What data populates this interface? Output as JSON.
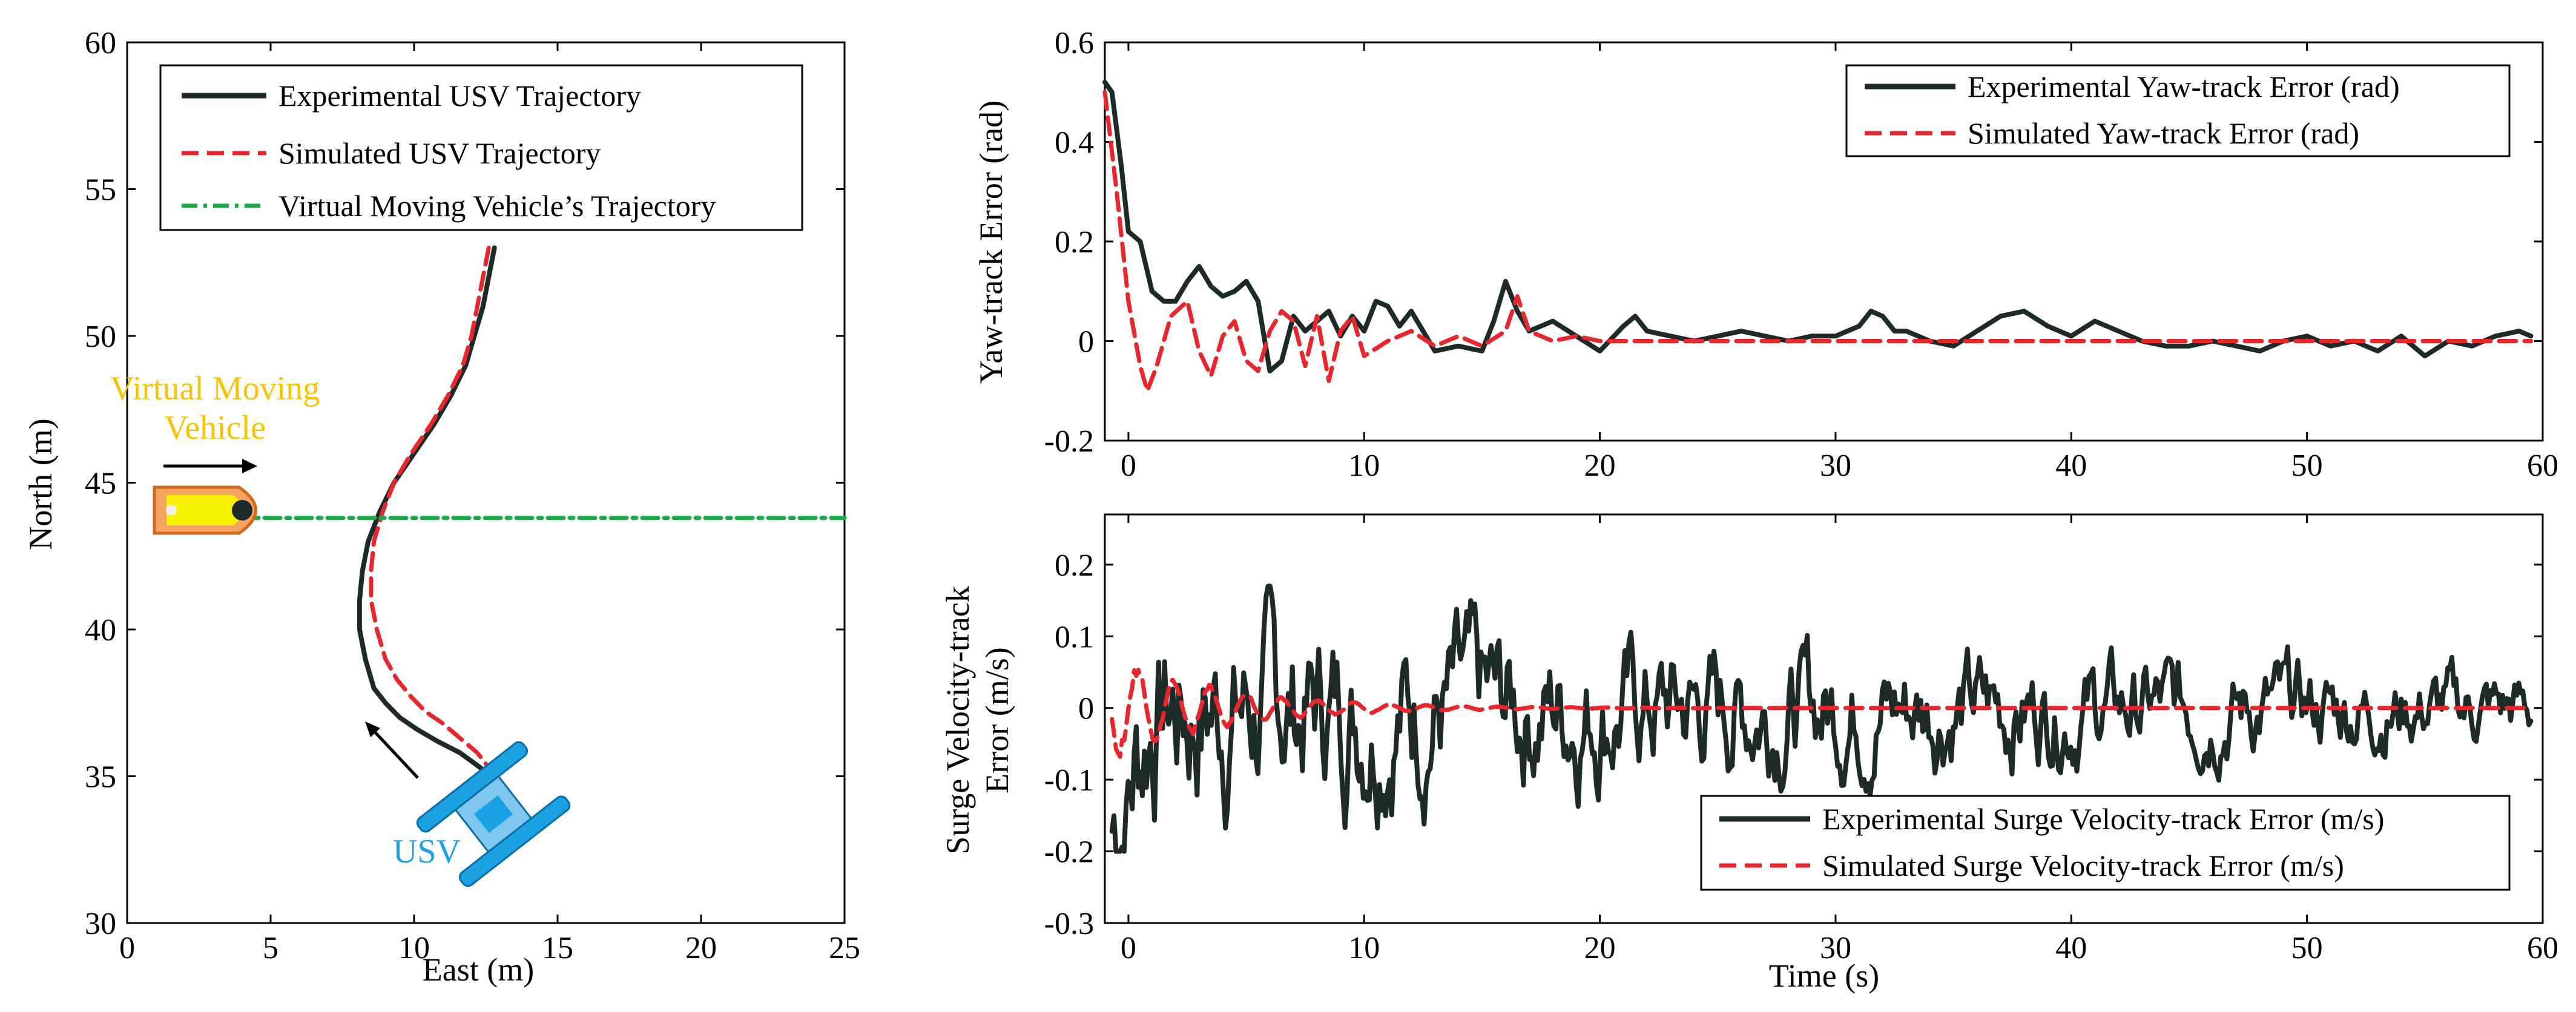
{
  "chart_data": [
    {
      "id": "traj",
      "type": "line",
      "xlabel": "East (m)",
      "ylabel": "North (m)",
      "xlim": [
        0,
        25
      ],
      "ylim": [
        30,
        60
      ],
      "xticks": [
        0,
        5,
        10,
        15,
        20,
        25
      ],
      "yticks": [
        30,
        35,
        40,
        45,
        50,
        55,
        60
      ],
      "legend_position": "top-left",
      "series": [
        {
          "name": "Experimental USV Trajectory",
          "color": "#1c2a28",
          "style": "solid",
          "x": [
            12.8,
            12.6,
            12.4,
            12.1,
            11.8,
            11.3,
            10.7,
            10.0,
            9.3,
            8.8,
            8.4,
            8.2,
            8.1,
            8.1,
            8.3,
            8.6,
            9.0,
            9.5,
            10.1,
            10.8,
            11.6,
            12.3,
            12.8,
            13.0
          ],
          "y": [
            53.0,
            52.0,
            51.0,
            50.0,
            49.0,
            48.0,
            47.0,
            46.0,
            45.0,
            44.0,
            43.0,
            42.0,
            41.0,
            40.0,
            39.0,
            38.0,
            37.5,
            37.0,
            36.6,
            36.2,
            35.8,
            35.3,
            34.8,
            34.0
          ]
        },
        {
          "name": "Simulated USV Trajectory",
          "color": "#e8262b",
          "style": "dashed",
          "x": [
            12.6,
            12.4,
            12.2,
            12.0,
            11.7,
            11.2,
            10.6,
            9.9,
            9.3,
            8.9,
            8.6,
            8.5,
            8.5,
            8.7,
            9.0,
            9.4,
            9.9,
            10.4,
            11.0,
            11.6,
            12.2,
            12.6,
            12.9,
            13.0
          ],
          "y": [
            53.0,
            52.0,
            51.0,
            50.0,
            49.0,
            48.0,
            47.0,
            46.0,
            45.0,
            44.0,
            43.0,
            42.0,
            41.0,
            40.0,
            39.0,
            38.3,
            37.7,
            37.2,
            36.8,
            36.3,
            35.8,
            35.3,
            34.8,
            34.2
          ]
        },
        {
          "name": "Virtual Moving Vehicle’s Trajectory",
          "color": "#1fa84a",
          "style": "dashdot",
          "x": [
            1.5,
            25
          ],
          "y": [
            43.8,
            43.8
          ]
        }
      ],
      "annotations": [
        {
          "text_line1": "Virtual Moving",
          "text_line2": "Vehicle",
          "color": "#f6c400",
          "x": 4.7,
          "y": 48.2
        },
        {
          "text": "USV",
          "color": "#1ba2e4",
          "x": 10.5,
          "y": 32.7
        }
      ]
    },
    {
      "id": "yaw",
      "type": "line",
      "xlabel": "",
      "ylabel": "Yaw-track Error (rad)",
      "xlim": [
        -1,
        60
      ],
      "ylim": [
        -0.2,
        0.6
      ],
      "xticks": [
        0,
        10,
        20,
        30,
        40,
        50,
        60
      ],
      "yticks": [
        -0.2,
        0,
        0.2,
        0.4,
        0.6
      ],
      "legend_position": "top-right",
      "series": [
        {
          "name": "Experimental Yaw-track Error (rad)",
          "color": "#1c2a28",
          "style": "solid",
          "x": [
            -1,
            -0.7,
            -0.3,
            0,
            0.5,
            1,
            1.5,
            2,
            2.5,
            3,
            3.5,
            4,
            4.5,
            5,
            5.5,
            6,
            6.5,
            7,
            7.5,
            8,
            8.5,
            9,
            9.5,
            10,
            10.5,
            11,
            11.5,
            12,
            12.5,
            13,
            14,
            15,
            15.5,
            16,
            16.5,
            17,
            18,
            19,
            20,
            21,
            21.5,
            22,
            23,
            24,
            25,
            26,
            27,
            28,
            29,
            30,
            31,
            31.5,
            32,
            32.5,
            33,
            34,
            35,
            36,
            37,
            38,
            39,
            40,
            41,
            42,
            43,
            44,
            45,
            46,
            47,
            48,
            49,
            50,
            51,
            52,
            53,
            54,
            55,
            56,
            57,
            58,
            59,
            59.5
          ],
          "y": [
            0.52,
            0.5,
            0.35,
            0.22,
            0.2,
            0.1,
            0.08,
            0.08,
            0.12,
            0.15,
            0.11,
            0.09,
            0.1,
            0.12,
            0.08,
            -0.06,
            -0.04,
            0.05,
            0.02,
            0.04,
            0.06,
            0.01,
            0.05,
            0.02,
            0.08,
            0.07,
            0.03,
            0.06,
            0.02,
            -0.02,
            -0.01,
            -0.02,
            0.04,
            0.12,
            0.06,
            0.02,
            0.04,
            0.01,
            -0.02,
            0.03,
            0.05,
            0.02,
            0.01,
            0.0,
            0.01,
            0.02,
            0.01,
            0.0,
            0.01,
            0.01,
            0.03,
            0.06,
            0.05,
            0.02,
            0.02,
            0.0,
            -0.01,
            0.02,
            0.05,
            0.06,
            0.03,
            0.01,
            0.04,
            0.02,
            0.0,
            -0.01,
            -0.01,
            0.0,
            -0.01,
            -0.02,
            0.0,
            0.01,
            -0.01,
            0.0,
            -0.02,
            0.01,
            -0.03,
            0.0,
            -0.01,
            0.01,
            0.02,
            0.01
          ]
        },
        {
          "name": "Simulated Yaw-track Error (rad)",
          "color": "#e8262b",
          "style": "dashed",
          "x": [
            -1,
            -0.5,
            0,
            0.5,
            0.8,
            1.2,
            1.8,
            2.5,
            3,
            3.5,
            4,
            4.5,
            5,
            5.5,
            6,
            6.5,
            7,
            7.5,
            8,
            8.5,
            9,
            9.5,
            10,
            11,
            12,
            13,
            14,
            15,
            16,
            16.5,
            17,
            18,
            19,
            20,
            22,
            24,
            26,
            28,
            30,
            32,
            34,
            36,
            38,
            40,
            42,
            44,
            46,
            48,
            50,
            52,
            54,
            56,
            58,
            59.5
          ],
          "y": [
            0.5,
            0.3,
            0.08,
            -0.05,
            -0.1,
            -0.05,
            0.05,
            0.08,
            -0.02,
            -0.07,
            0.01,
            0.04,
            -0.04,
            -0.06,
            0.02,
            0.06,
            0.04,
            -0.05,
            0.05,
            -0.08,
            0.02,
            0.05,
            -0.03,
            0.0,
            0.02,
            -0.01,
            0.01,
            -0.01,
            0.02,
            0.09,
            0.02,
            0.0,
            0.01,
            0.0,
            0.0,
            0.0,
            0.0,
            0.0,
            0.0,
            0.0,
            0.0,
            0.0,
            0.0,
            0.0,
            0.0,
            0.0,
            0.0,
            0.0,
            0.0,
            0.0,
            0.0,
            0.0,
            0.0,
            0.0
          ]
        }
      ]
    },
    {
      "id": "surge",
      "type": "line",
      "xlabel": "Time (s)",
      "ylabel_line1": "Surge Velocity-track",
      "ylabel_line2": "Error (m/s)",
      "xlim": [
        -1,
        60
      ],
      "ylim": [
        -0.3,
        0.27
      ],
      "xticks": [
        0,
        10,
        20,
        30,
        40,
        50,
        60
      ],
      "yticks": [
        -0.3,
        -0.2,
        -0.1,
        0,
        0.1,
        0.2
      ],
      "legend_position": "bottom-right",
      "series": [
        {
          "name": "Experimental Surge Velocity-track Error (m/s)",
          "color": "#1c2a28",
          "style": "solid",
          "generator": "noisy",
          "amplitude_start": 0.2,
          "amplitude_end": 0.06
        },
        {
          "name": "Simulated Surge Velocity-track Error (m/s)",
          "color": "#e8262b",
          "style": "dashed",
          "generator": "decay",
          "amplitude_start": 0.07,
          "amplitude_end": 0.0
        }
      ]
    }
  ]
}
